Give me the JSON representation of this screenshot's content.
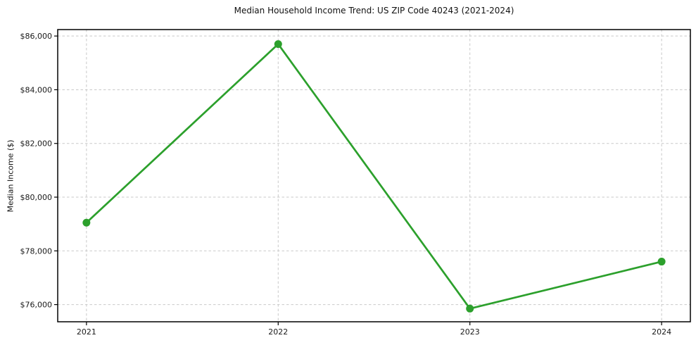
{
  "figure": {
    "title": "Median Household Income Trend: US ZIP Code 40243 (2021-2024)",
    "ylabel": "Median Income ($)"
  },
  "colors": {
    "line": "#2ca02c",
    "marker": "#2ca02c",
    "grid": "#c9c9c9",
    "spine": "#000000",
    "text": "#1a1a1a",
    "background": "#ffffff"
  },
  "chart_data": {
    "type": "line",
    "title": "Median Household Income Trend: US ZIP Code 40243 (2021-2024)",
    "xlabel": "",
    "ylabel": "Median Income ($)",
    "x": [
      2021,
      2022,
      2023,
      2024
    ],
    "values": [
      79050,
      85700,
      75850,
      77600
    ],
    "xtick_labels": [
      "2021",
      "2022",
      "2023",
      "2024"
    ],
    "ytick_values": [
      76000,
      78000,
      80000,
      82000,
      84000,
      86000
    ],
    "ytick_labels": [
      "$76,000",
      "$78,000",
      "$80,000",
      "$82,000",
      "$84,000",
      "$86,000"
    ],
    "xlim": [
      2020.85,
      2024.15
    ],
    "ylim": [
      75360,
      86240
    ],
    "grid": true,
    "grid_style": "dashed",
    "legend": "none",
    "marker": "circle"
  }
}
